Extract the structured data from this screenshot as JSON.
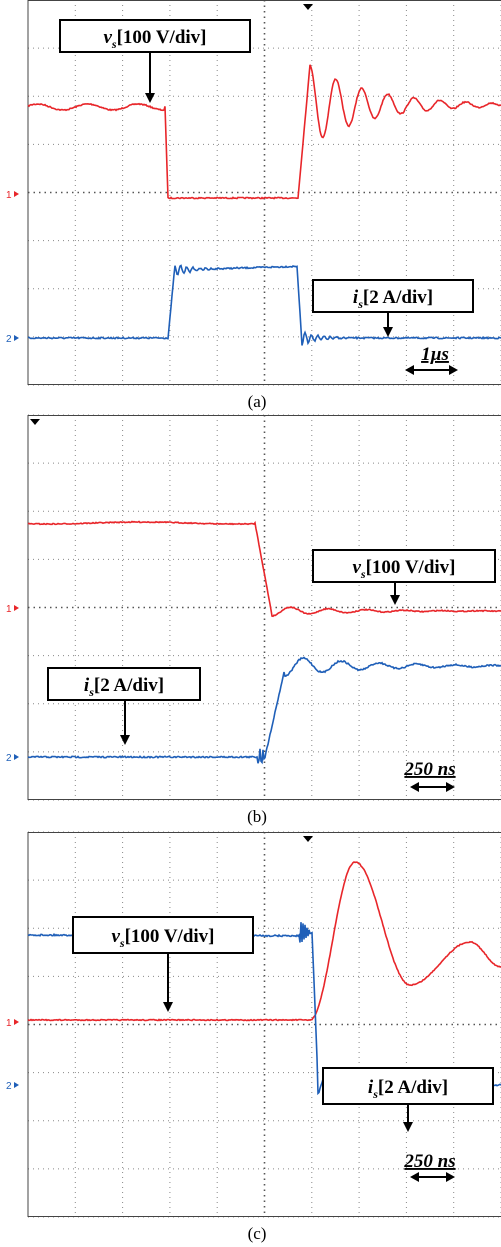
{
  "panels": [
    {
      "caption": "(a)",
      "voltage_label": {
        "symbol": "v",
        "subscript": "s",
        "scale": "[100 V/div]"
      },
      "current_label": {
        "symbol": "i",
        "subscript": "s",
        "scale": "[2 A/div]"
      },
      "time_scale": "1µs",
      "channel_markers": [
        "1",
        "2"
      ]
    },
    {
      "caption": "(b)",
      "voltage_label": {
        "symbol": "v",
        "subscript": "s",
        "scale": "[100 V/div]"
      },
      "current_label": {
        "symbol": "i",
        "subscript": "s",
        "scale": "[2 A/div]"
      },
      "time_scale": "250 ns",
      "channel_markers": [
        "1",
        "2"
      ]
    },
    {
      "caption": "(c)",
      "voltage_label": {
        "symbol": "v",
        "subscript": "s",
        "scale": "[100 V/div]"
      },
      "current_label": {
        "symbol": "i",
        "subscript": "s",
        "scale": "[2 A/div]"
      },
      "time_scale": "250 ns",
      "channel_markers": [
        "1",
        "2"
      ]
    }
  ]
}
